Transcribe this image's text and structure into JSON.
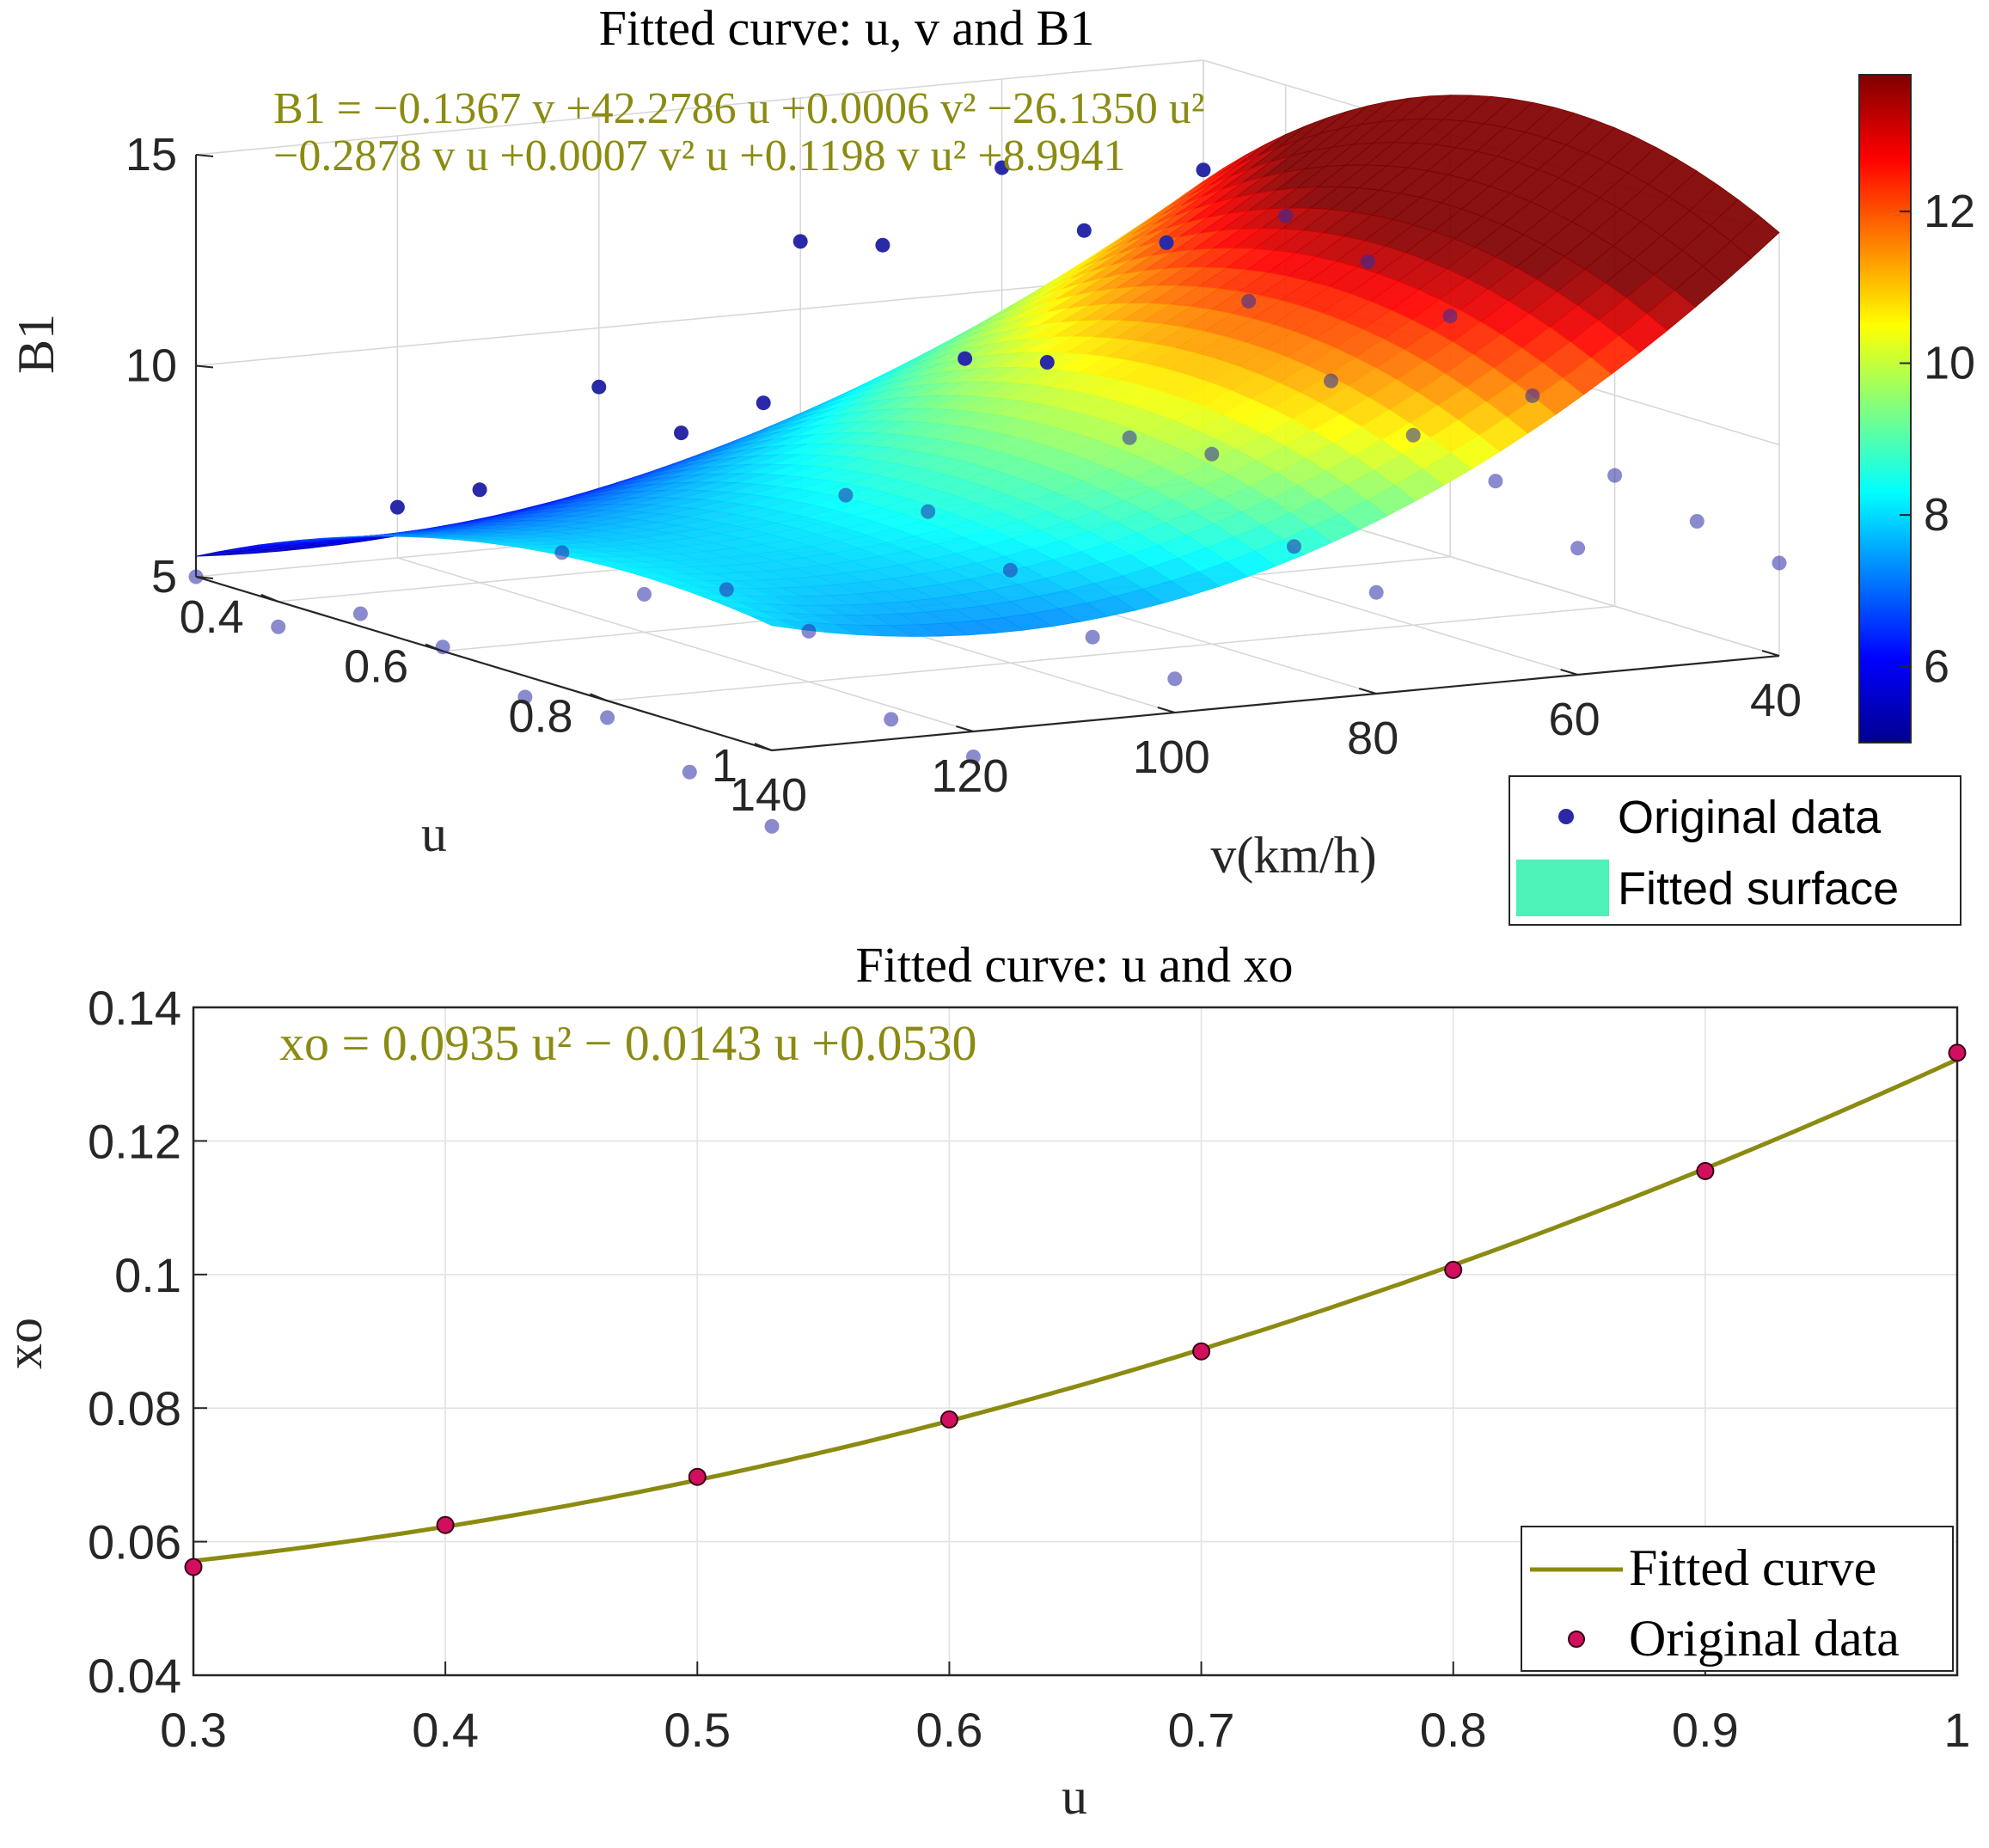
{
  "colors": {
    "equation_text": "#8B8B12",
    "curve": "#8B8B12",
    "marker_top": "#2A2AA8",
    "marker_bottom": "#D0105E",
    "legend_surface_swatch": "#4CF2B8",
    "grid": "#E0E0E0",
    "axis": "#262626"
  },
  "top_chart": {
    "title": "Fitted curve: u, v and B1",
    "equation_line1": "B1 = −0.1367 v +42.2786 u +0.0006 v² −26.1350 u²",
    "equation_line2": "−0.2878 v u +0.0007 v² u +0.1198 v u² +8.9941",
    "z_label": "B1",
    "u_label": "u",
    "v_label": "v(km/h)",
    "z_ticks": [
      "5",
      "10",
      "15"
    ],
    "u_ticks": [
      "0.4",
      "0.6",
      "0.8",
      "1"
    ],
    "v_ticks": [
      "140",
      "120",
      "100",
      "80",
      "60",
      "40"
    ],
    "colorbar_ticks": [
      "6",
      "8",
      "10",
      "12"
    ],
    "legend": {
      "points": "Original data",
      "surface": "Fitted surface"
    }
  },
  "bottom_chart": {
    "title": "Fitted curve: u and xo",
    "equation": "xo = 0.0935 u² − 0.0143 u +0.0530",
    "xlabel": "u",
    "ylabel": "xo",
    "x_ticks": [
      "0.3",
      "0.4",
      "0.5",
      "0.6",
      "0.7",
      "0.8",
      "0.9",
      "1"
    ],
    "y_ticks": [
      "0.04",
      "0.06",
      "0.08",
      "0.1",
      "0.12",
      "0.14"
    ],
    "legend": {
      "curve": "Fitted curve",
      "points": "Original data"
    }
  },
  "chart_data": [
    {
      "type": "surface",
      "title": "Fitted curve: u, v and B1",
      "xlabel": "v(km/h)",
      "ylabel": "u",
      "zlabel": "B1",
      "v_range": [
        40,
        140
      ],
      "u_range": [
        0.3,
        1.0
      ],
      "zlim": [
        5,
        15
      ],
      "colorbar_range": [
        5.0,
        13.8
      ],
      "coefficients": {
        "v": -0.1367,
        "u": 42.2786,
        "v2": 0.0006,
        "u2": -26.135,
        "vu": -0.2878,
        "v2u": 0.0007,
        "vu2": 0.1198,
        "c": 8.9941
      },
      "original_data": [
        {
          "v": 140,
          "u": 0.3,
          "B1": 5.0
        },
        {
          "v": 140,
          "u": 0.4,
          "B1": 4.4
        },
        {
          "v": 140,
          "u": 0.5,
          "B1": 5.3
        },
        {
          "v": 140,
          "u": 0.6,
          "B1": 5.1
        },
        {
          "v": 140,
          "u": 0.7,
          "B1": 4.5
        },
        {
          "v": 140,
          "u": 0.8,
          "B1": 4.6
        },
        {
          "v": 140,
          "u": 0.9,
          "B1": 3.9
        },
        {
          "v": 140,
          "u": 1.0,
          "B1": 3.2
        },
        {
          "v": 120,
          "u": 0.3,
          "B1": 6.2
        },
        {
          "v": 120,
          "u": 0.4,
          "B1": 7.2
        },
        {
          "v": 120,
          "u": 0.5,
          "B1": 6.3
        },
        {
          "v": 120,
          "u": 0.6,
          "B1": 5.9
        },
        {
          "v": 120,
          "u": 0.7,
          "B1": 6.6
        },
        {
          "v": 120,
          "u": 0.8,
          "B1": 6.2
        },
        {
          "v": 120,
          "u": 0.9,
          "B1": 4.7
        },
        {
          "v": 120,
          "u": 1.0,
          "B1": 4.4
        },
        {
          "v": 100,
          "u": 0.3,
          "B1": 8.6
        },
        {
          "v": 100,
          "u": 0.4,
          "B1": 8.1
        },
        {
          "v": 100,
          "u": 0.5,
          "B1": 9.4
        },
        {
          "v": 100,
          "u": 0.6,
          "B1": 7.8
        },
        {
          "v": 100,
          "u": 0.7,
          "B1": 8.0
        },
        {
          "v": 100,
          "u": 0.8,
          "B1": 7.2
        },
        {
          "v": 100,
          "u": 0.9,
          "B1": 6.2
        },
        {
          "v": 100,
          "u": 1.0,
          "B1": 5.8
        },
        {
          "v": 80,
          "u": 0.3,
          "B1": 11.6
        },
        {
          "v": 80,
          "u": 0.4,
          "B1": 12.1
        },
        {
          "v": 80,
          "u": 0.5,
          "B1": 10.0
        },
        {
          "v": 80,
          "u": 0.6,
          "B1": 10.5
        },
        {
          "v": 80,
          "u": 0.7,
          "B1": 9.3
        },
        {
          "v": 80,
          "u": 0.8,
          "B1": 9.5
        },
        {
          "v": 80,
          "u": 0.9,
          "B1": 7.9
        },
        {
          "v": 80,
          "u": 1.0,
          "B1": 7.4
        },
        {
          "v": 60,
          "u": 0.3,
          "B1": 12.9
        },
        {
          "v": 60,
          "u": 0.4,
          "B1": 12.0
        },
        {
          "v": 60,
          "u": 0.5,
          "B1": 12.3
        },
        {
          "v": 60,
          "u": 0.6,
          "B1": 11.5
        },
        {
          "v": 60,
          "u": 0.7,
          "B1": 10.2
        },
        {
          "v": 60,
          "u": 0.8,
          "B1": 9.5
        },
        {
          "v": 60,
          "u": 0.9,
          "B1": 9.0
        },
        {
          "v": 60,
          "u": 1.0,
          "B1": 8.0
        },
        {
          "v": 40,
          "u": 0.3,
          "B1": 12.4
        },
        {
          "v": 40,
          "u": 0.4,
          "B1": 11.9
        },
        {
          "v": 40,
          "u": 0.5,
          "B1": 11.4
        },
        {
          "v": 40,
          "u": 0.6,
          "B1": 10.7
        },
        {
          "v": 40,
          "u": 0.7,
          "B1": 9.4
        },
        {
          "v": 40,
          "u": 0.8,
          "B1": 8.1
        },
        {
          "v": 40,
          "u": 0.9,
          "B1": 7.6
        },
        {
          "v": 40,
          "u": 1.0,
          "B1": 7.2
        }
      ]
    },
    {
      "type": "line",
      "title": "Fitted curve: u and xo",
      "xlabel": "u",
      "ylabel": "xo",
      "xlim": [
        0.3,
        1.0
      ],
      "ylim": [
        0.04,
        0.14
      ],
      "grid": true,
      "legend_position": "bottom-right",
      "series": [
        {
          "name": "Fitted curve",
          "coefficients": {
            "a": 0.0935,
            "b": -0.0143,
            "c": 0.053
          }
        },
        {
          "name": "Original data",
          "x": [
            0.3,
            0.4,
            0.5,
            0.6,
            0.7,
            0.8,
            0.9,
            1.0
          ],
          "y": [
            0.0562,
            0.0625,
            0.0697,
            0.0783,
            0.0885,
            0.1007,
            0.1155,
            0.1332
          ]
        }
      ]
    }
  ]
}
